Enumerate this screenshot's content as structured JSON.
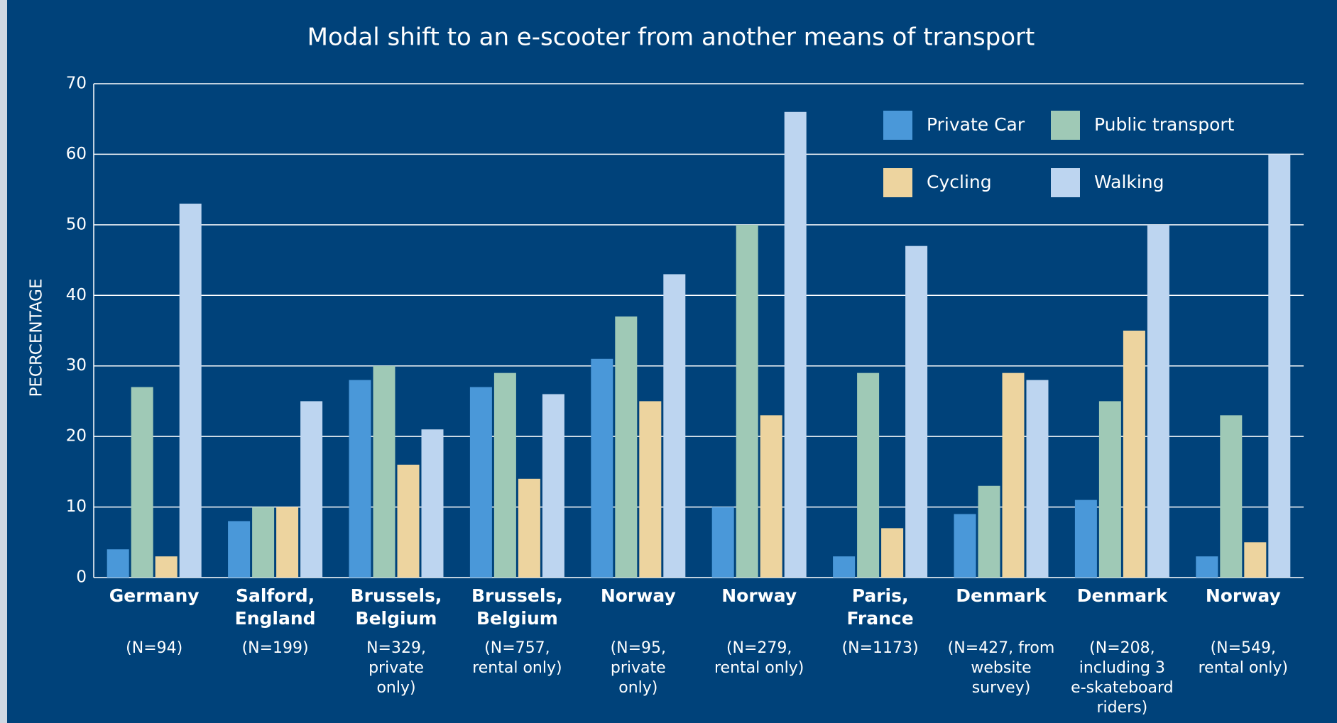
{
  "chart_data": {
    "type": "bar",
    "title": "Modal shift to an e-scooter from another means of transport",
    "y_label": "PECRCENTAGE",
    "categories": [
      [
        "Germany"
      ],
      [
        "Salford,",
        "England"
      ],
      [
        "Brussels,",
        "Belgium"
      ],
      [
        "Brussels,",
        "Belgium"
      ],
      [
        "Norway"
      ],
      [
        "Norway"
      ],
      [
        "Paris,",
        "France"
      ],
      [
        "Denmark"
      ],
      [
        "Denmark"
      ],
      [
        "Norway"
      ]
    ],
    "sample_notes": [
      [
        "(N=94)"
      ],
      [
        "(N=199)"
      ],
      [
        "N=329,",
        "private",
        "only)"
      ],
      [
        "(N=757,",
        "rental only)"
      ],
      [
        "(N=95,",
        "private",
        "only)"
      ],
      [
        "(N=279,",
        "rental only)"
      ],
      [
        "(N=1173)"
      ],
      [
        "(N=427, from",
        "website",
        "survey)"
      ],
      [
        "(N=208,",
        "including 3",
        "e-skateboard",
        "riders)"
      ],
      [
        "(N=549,",
        "rental only)"
      ]
    ],
    "series": [
      {
        "name": "Private Car",
        "color": "#4a98d9",
        "values": [
          4,
          8,
          28,
          27,
          31,
          10,
          3,
          9,
          11,
          3
        ]
      },
      {
        "name": "Public transport",
        "color": "#9fc9b6",
        "values": [
          27,
          10,
          30,
          29,
          37,
          50,
          29,
          13,
          25,
          23
        ]
      },
      {
        "name": "Cycling",
        "color": "#edd49f",
        "values": [
          3,
          10,
          16,
          14,
          25,
          23,
          7,
          29,
          35,
          5
        ]
      },
      {
        "name": "Walking",
        "color": "#bdd5f0",
        "values": [
          53,
          25,
          21,
          26,
          43,
          66,
          47,
          28,
          50,
          60
        ]
      }
    ],
    "ylim": [
      0,
      70
    ],
    "yticks": [
      0,
      10,
      20,
      30,
      40,
      50,
      60,
      70
    ],
    "grid": true,
    "legend": "top right"
  }
}
